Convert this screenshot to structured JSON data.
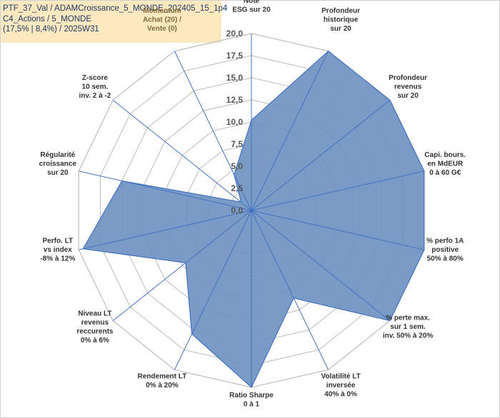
{
  "title": {
    "line1": "PTF_37_Val / ADAMCroissance_5_MONDE_202405_15_1p4",
    "line2": "C4_Actions / 5_MONDE",
    "line3": "(17,5% | 8,4%) / 2025W31"
  },
  "chart_data": {
    "type": "radar",
    "rmin": 0,
    "rmax": 20,
    "ticks": [
      "0,0",
      "2,5",
      "5,0",
      "7,5",
      "10,0",
      "12,5",
      "15,0",
      "17,5",
      "20,0"
    ],
    "tick_values": [
      0,
      2.5,
      5,
      7.5,
      10,
      12.5,
      15,
      17.5,
      20
    ],
    "grid": true,
    "colors": {
      "fill": "#6f93c0",
      "line": "#4472c4",
      "grid": "#c0c0c0",
      "spoke": "#4472c4"
    },
    "axes": [
      {
        "lines": [
          "Note",
          "ESG sur 20"
        ],
        "value": 10.2
      },
      {
        "lines": [
          "Profondeur",
          "historique",
          "sur 20"
        ],
        "value": 20
      },
      {
        "lines": [
          "Profondeur",
          "revenus",
          "sur 20"
        ],
        "value": 20
      },
      {
        "lines": [
          "Capi. bours.",
          "en MdEUR",
          "0 à 60 G€"
        ],
        "value": 20
      },
      {
        "lines": [
          "% perfo 1A",
          "positive",
          "50% à 80%"
        ],
        "value": 20
      },
      {
        "lines": [
          "% perte max.",
          "sur 1 sem.",
          "inv. 50% à 20%"
        ],
        "value": 20
      },
      {
        "lines": [
          "Volatilité LT",
          "inversée",
          "40% à 0%"
        ],
        "value": 11
      },
      {
        "lines": [
          "Ratio Sharpe",
          "0 à 1"
        ],
        "value": 20
      },
      {
        "lines": [
          "Rendement LT",
          "0% à 20%"
        ],
        "value": 15.5
      },
      {
        "lines": [
          "Niveau LT",
          "revenus",
          "reccurents",
          "0% à 6%"
        ],
        "value": 9.5
      },
      {
        "lines": [
          "Perfo. LT",
          "vs index",
          "-8% à 12%"
        ],
        "value": 19.5
      },
      {
        "lines": [
          "Régularité",
          "croissance",
          "sur 20"
        ],
        "value": 15
      },
      {
        "lines": [
          "Z-score",
          "10 sem.",
          "inv. 2 à -2"
        ],
        "value": 1.5
      },
      {
        "lines": [
          "Momentum",
          "Achat (20) /",
          "Vente (0)"
        ],
        "value": 4.5
      }
    ]
  }
}
